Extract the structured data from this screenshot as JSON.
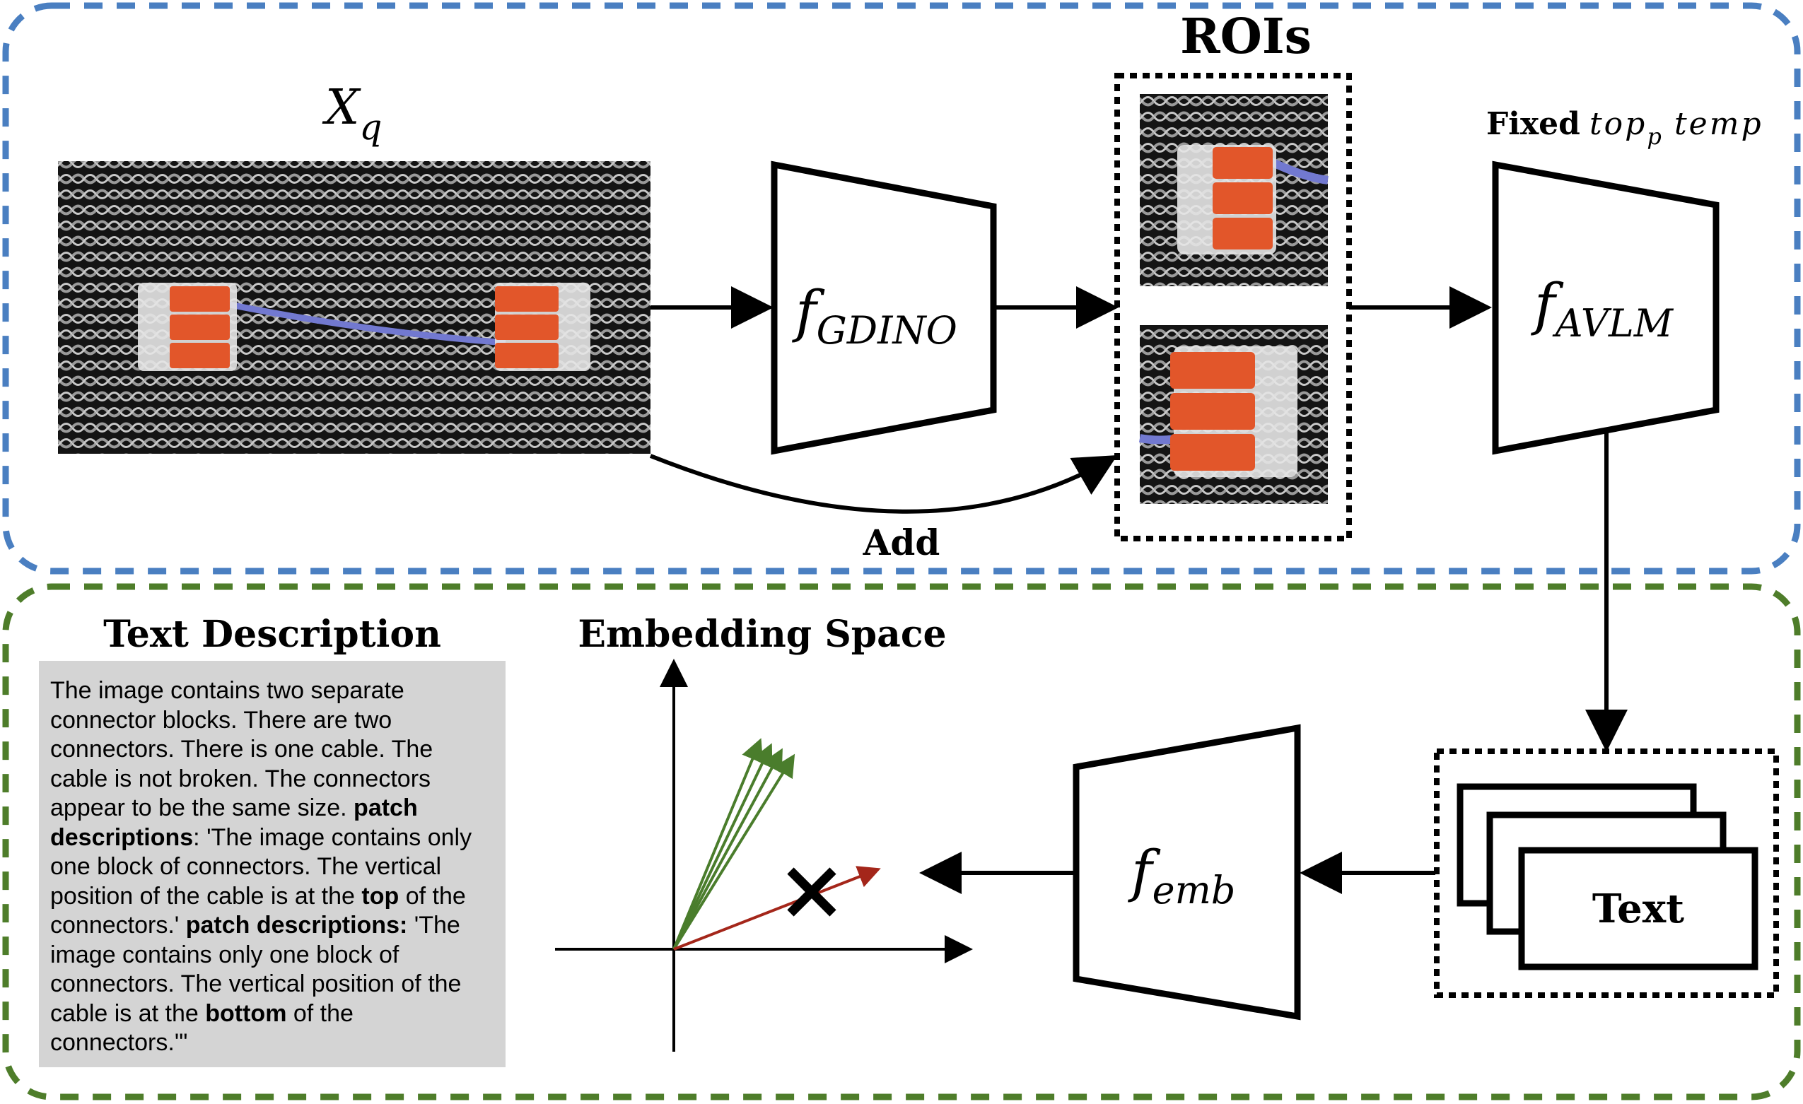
{
  "colors": {
    "top_border": "#4a7fc1",
    "bottom_border": "#4e7d2a",
    "green_vector": "#4a7d2c",
    "red_vector": "#a4261a",
    "text_panel_bg": "#d4d4d4"
  },
  "top": {
    "input_label_base": "X",
    "input_label_sub": "q",
    "gdino_base": "f",
    "gdino_sub": "GDINO",
    "rois_title": "ROIs",
    "add_label": "Add",
    "fixed_label": "Fixed",
    "top_p_base": "top",
    "top_p_sub": "p",
    "temp_label": "temp",
    "avlm_base": "f",
    "avlm_sub": "AVLM"
  },
  "bottom": {
    "text_desc_title": "Text Description",
    "embedding_title": "Embedding Space",
    "emb_base": "f",
    "emb_sub": "emb",
    "text_card_label": "Text",
    "description": {
      "p1": "The image contains two separate connector blocks. There are two connectors. There is one cable. The cable is not broken. The connectors appear to be the same size. ",
      "b1": "patch descriptions",
      "p2": ": 'The image contains only one block of connectors. The vertical position of the cable is at the ",
      "b2": "top",
      "p3": " of the connectors.' ",
      "b3": "patch descriptions:",
      "p4": " 'The image contains only one block of connectors. The vertical position of the cable is at the ",
      "b4": "bottom",
      "p5": " of the connectors.'\""
    }
  },
  "icons": {
    "cross": "x-mark-icon",
    "arrows": "arrow-icon"
  }
}
